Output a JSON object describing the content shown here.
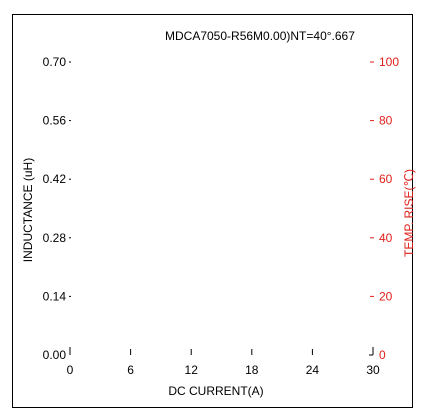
{
  "chart_data": {
    "type": "line",
    "title": "MDCA7050-R56M0.00)NT=40°.667",
    "xlabel": "DC CURRENT(A)",
    "ylabel_left": "INDUCTANCE (uH)",
    "ylabel_right": "TEMP. RISE(℃)",
    "xlim": [
      0,
      30
    ],
    "ylim_left": [
      0,
      0.7
    ],
    "ylim_right": [
      0,
      100
    ],
    "x_ticks": [
      "0",
      "6",
      "12",
      "18",
      "24",
      "30"
    ],
    "y_left_ticks": [
      "0.00",
      "0.14",
      "0.28",
      "0.42",
      "0.56",
      "0.70"
    ],
    "y_right_ticks": [
      "0",
      "20",
      "40",
      "60",
      "80",
      "100"
    ],
    "series": [],
    "grid": false,
    "colors": {
      "left_axis": "#000000",
      "right_axis": "#e0201b",
      "frame": "#000000"
    }
  }
}
